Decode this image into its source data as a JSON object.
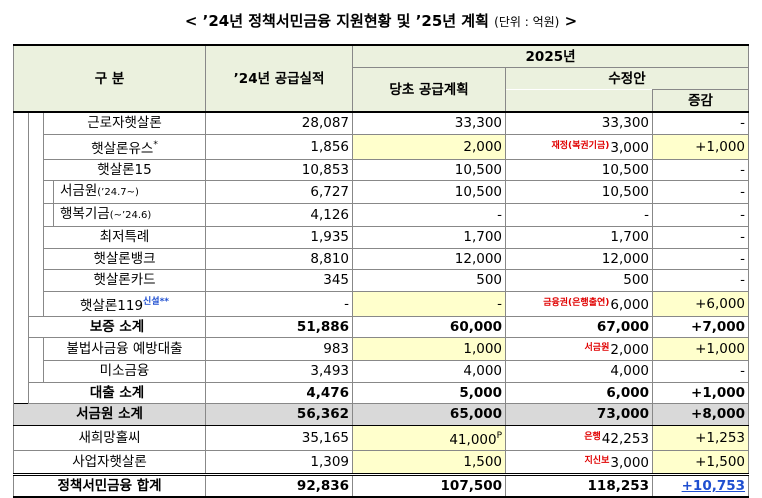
{
  "header": {
    "open": "<",
    "title": "’24년 정책서민금융 지원현황 및 ’25년 계획",
    "unit": "(단위 : 억원)",
    "close": ">"
  },
  "table": {
    "columns": {
      "category": "구 분",
      "actual": "’24년 공급실적",
      "year": "2025년",
      "plan": "당초 공급계획",
      "revised": "수정안",
      "change": "증감"
    },
    "rows": [
      {
        "label": "근로자햇살론",
        "actual": "28,087",
        "plan": "33,300",
        "revised": "33,300",
        "change": "-"
      },
      {
        "label": "햇살론유스",
        "sup": "*",
        "actual": "1,856",
        "plan": "2,000",
        "note": "재정(복권기금)",
        "revised": "3,000",
        "change": "+1,000"
      },
      {
        "label": "햇살론15",
        "actual": "10,853",
        "plan": "10,500",
        "revised": "10,500",
        "change": "-"
      },
      {
        "label": "서금원",
        "small": "(’24.7~)",
        "actual": "6,727",
        "plan": "10,500",
        "revised": "10,500",
        "change": "-"
      },
      {
        "label": "행복기금",
        "small": "(~’24.6)",
        "actual": "4,126",
        "plan": "-",
        "revised": "-",
        "change": "-"
      },
      {
        "label": "최저특례",
        "actual": "1,935",
        "plan": "1,700",
        "revised": "1,700",
        "change": "-"
      },
      {
        "label": "햇살론뱅크",
        "actual": "8,810",
        "plan": "12,000",
        "revised": "12,000",
        "change": "-"
      },
      {
        "label": "햇살론카드",
        "actual": "345",
        "plan": "500",
        "revised": "500",
        "change": "-"
      },
      {
        "label": "햇살론119",
        "sup": "신설**",
        "actual": "-",
        "plan": "-",
        "note": "금융권(은행출연)",
        "revised": "6,000",
        "change": "+6,000"
      },
      {
        "label": "보증 소계",
        "actual": "51,886",
        "plan": "60,000",
        "revised": "67,000",
        "change": "+7,000"
      },
      {
        "label": "불법사금융 예방대출",
        "actual": "983",
        "plan": "1,000",
        "note": "서금원",
        "revised": "2,000",
        "change": "+1,000"
      },
      {
        "label": "미소금융",
        "actual": "3,493",
        "plan": "4,000",
        "revised": "4,000",
        "change": "-"
      },
      {
        "label": "대출 소계",
        "actual": "4,476",
        "plan": "5,000",
        "revised": "6,000",
        "change": "+1,000"
      },
      {
        "label": "서금원 소계",
        "actual": "56,362",
        "plan": "65,000",
        "revised": "73,000",
        "change": "+8,000"
      },
      {
        "label": "새희망홀씨",
        "actual": "35,165",
        "plan": "41,000",
        "plan_sup": "P",
        "note": "은행",
        "revised": "42,253",
        "change": "+1,253"
      },
      {
        "label": "사업자햇살론",
        "actual": "1,309",
        "plan": "1,500",
        "note": "지신보",
        "revised": "3,000",
        "change": "+1,500"
      },
      {
        "label": "정책서민금융 합계",
        "actual": "92,836",
        "plan": "107,500",
        "revised": "118,253",
        "change": "+10,753"
      }
    ]
  }
}
